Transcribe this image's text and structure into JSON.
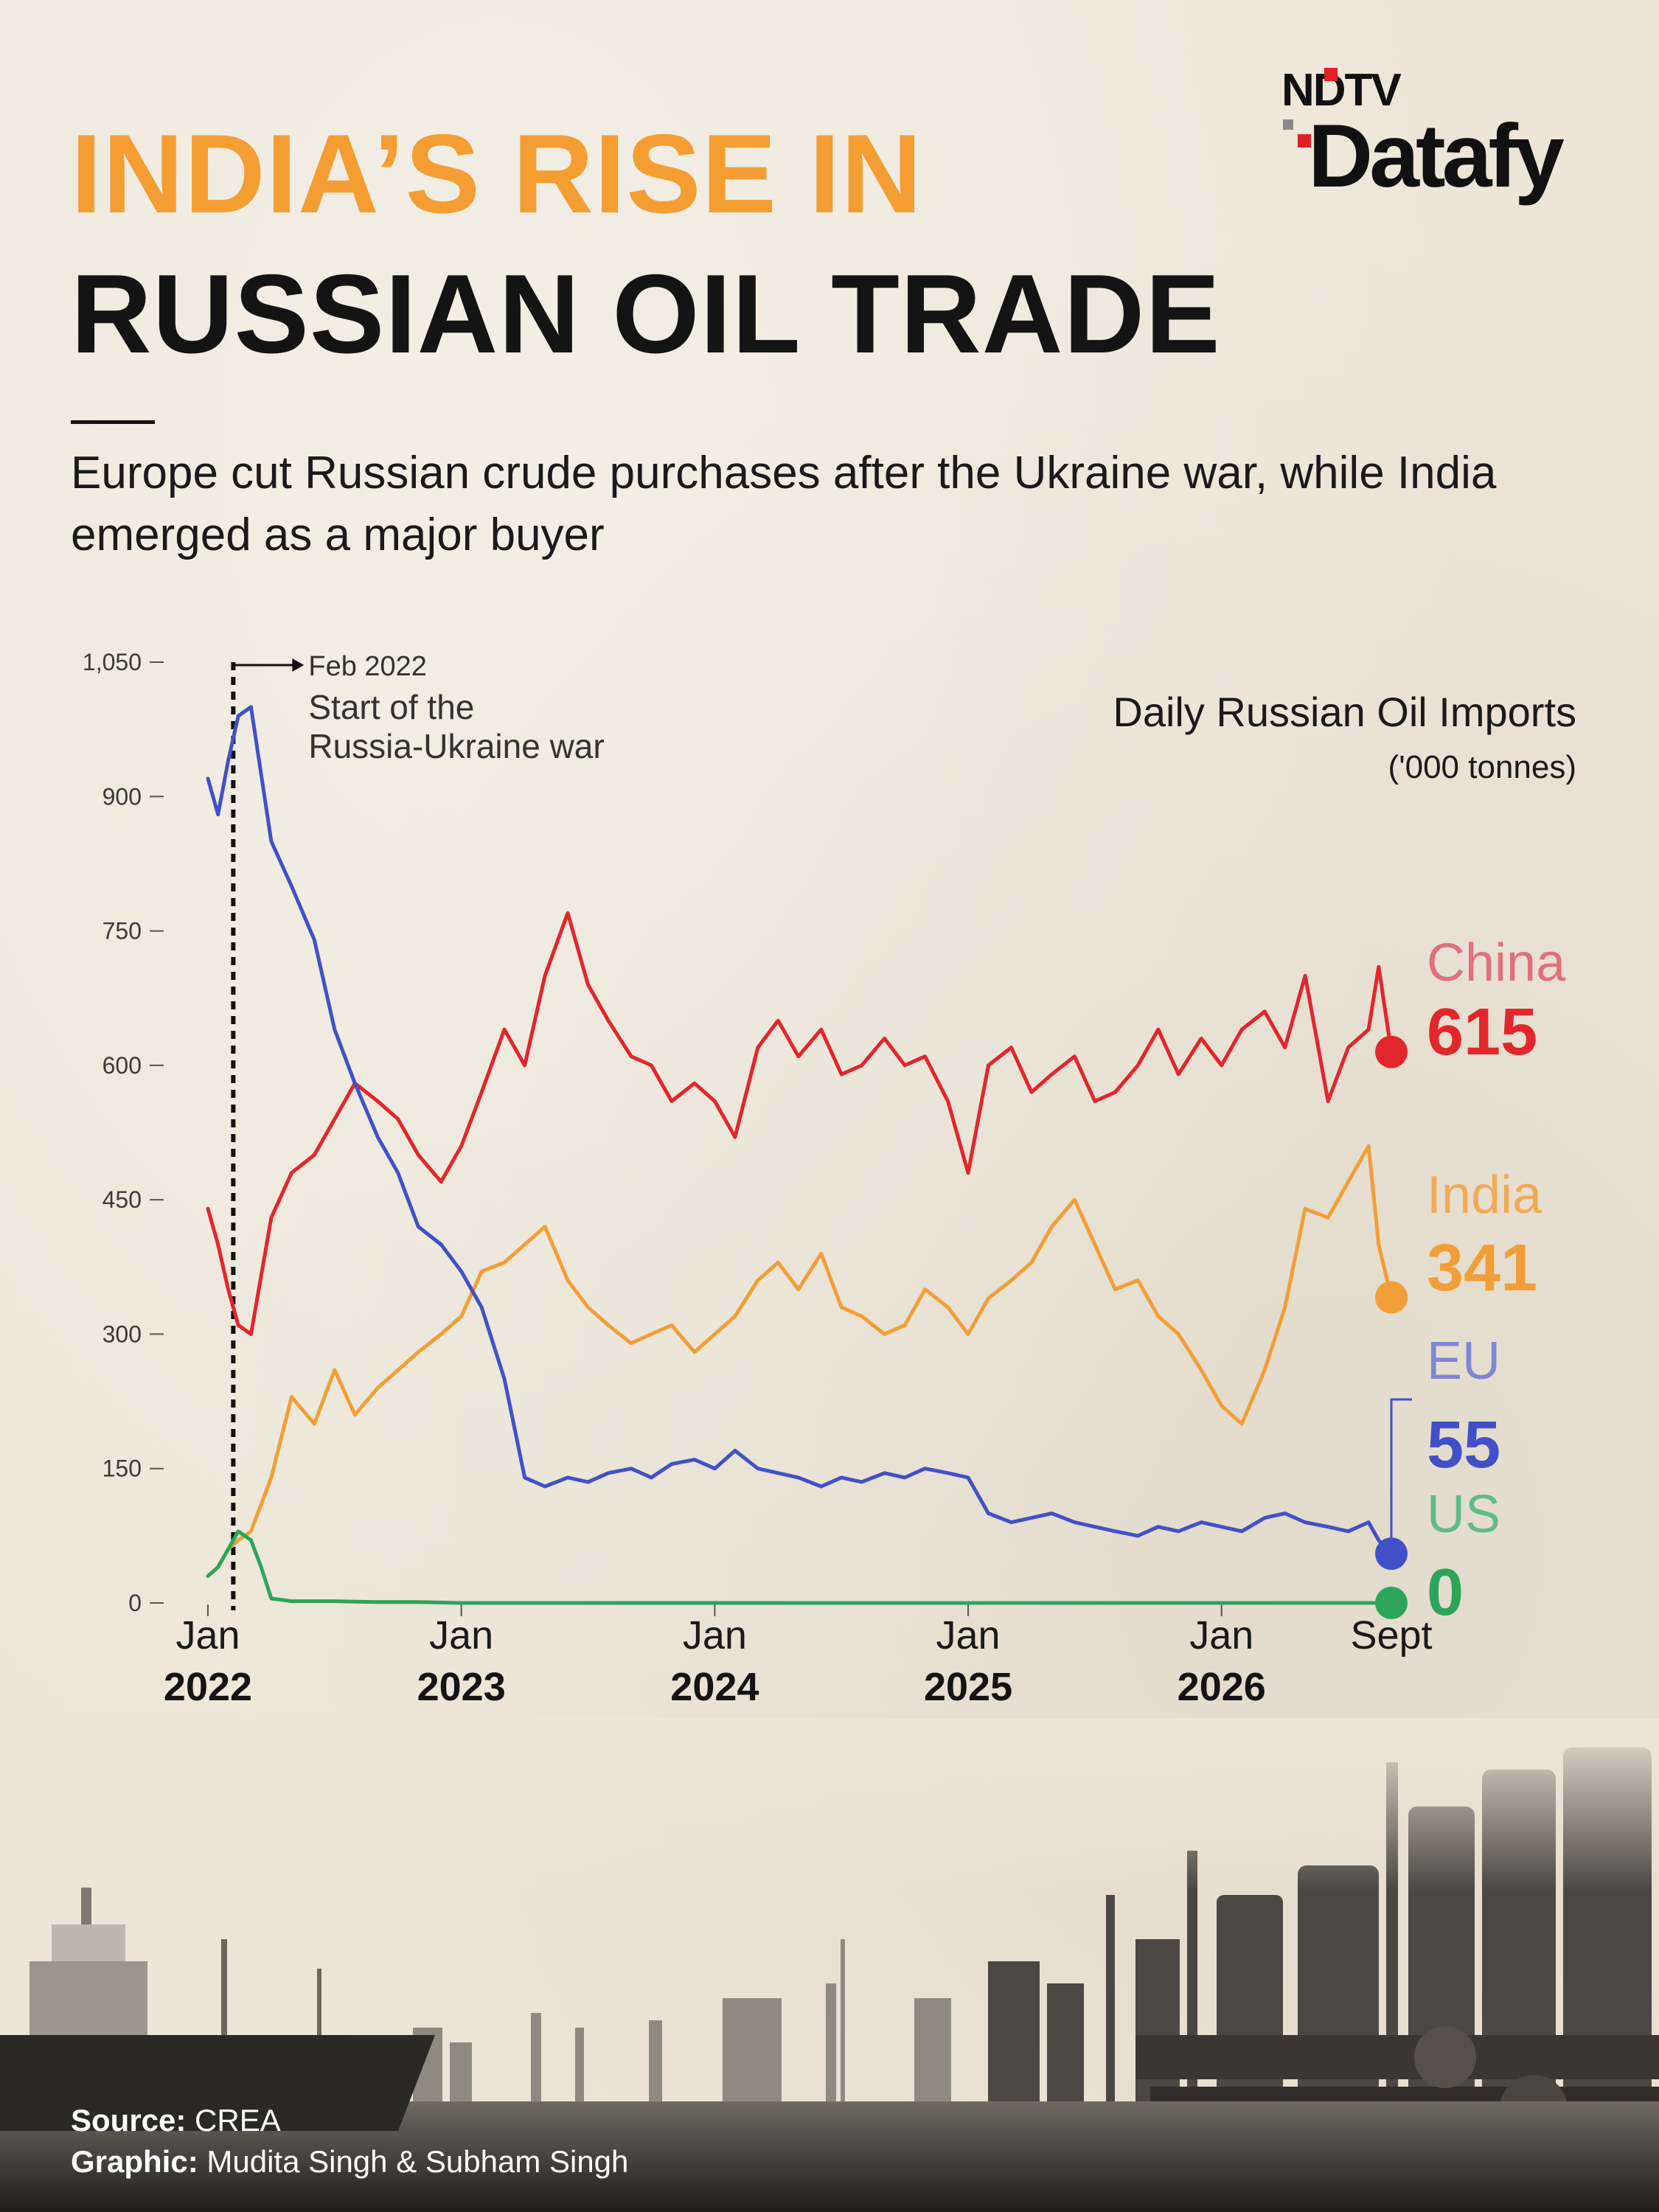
{
  "brand": {
    "line1": "NDTV",
    "line2": "Datafy"
  },
  "title": {
    "line1": "INDIA’S RISE IN",
    "line2": "RUSSIAN OIL TRADE"
  },
  "subtitle": "Europe cut Russian crude purchases after the Ukraine war, while India emerged as a major buyer",
  "footer": {
    "source_label": "Source:",
    "source_value": "CREA",
    "graphic_label": "Graphic:",
    "graphic_value": "Mudita Singh & Subham Singh"
  },
  "chart_data": {
    "type": "line",
    "title": "Daily Russian Oil Imports",
    "ylabel": "('000 tonnes)",
    "ylim": [
      0,
      1050
    ],
    "yticks": [
      "0",
      "150",
      "300",
      "450",
      "600",
      "750",
      "900",
      "1,050"
    ],
    "ytick_values": [
      0,
      150,
      300,
      450,
      600,
      750,
      900,
      1050
    ],
    "xlim": [
      2022.0,
      2026.67
    ],
    "xticks": [
      {
        "value": 2022.0,
        "month": "Jan",
        "year": "2022"
      },
      {
        "value": 2023.0,
        "month": "Jan",
        "year": "2023"
      },
      {
        "value": 2024.0,
        "month": "Jan",
        "year": "2024"
      },
      {
        "value": 2025.0,
        "month": "Jan",
        "year": "2025"
      },
      {
        "value": 2026.0,
        "month": "Jan",
        "year": "2026"
      },
      {
        "value": 2026.67,
        "month": "Sept",
        "year": ""
      }
    ],
    "annotation": {
      "x": 2022.1,
      "date": "Feb 2022",
      "text_line1": "Start of the",
      "text_line2": "Russia-Ukraine war"
    },
    "series": [
      {
        "name": "China",
        "color": "#e3262c",
        "label_color": "#e0707a",
        "last_value": "615",
        "x": [
          2022.0,
          2022.04,
          2022.08,
          2022.12,
          2022.17,
          2022.25,
          2022.33,
          2022.42,
          2022.5,
          2022.58,
          2022.67,
          2022.75,
          2022.83,
          2022.92,
          2023.0,
          2023.08,
          2023.17,
          2023.25,
          2023.33,
          2023.42,
          2023.5,
          2023.58,
          2023.67,
          2023.75,
          2023.83,
          2023.92,
          2024.0,
          2024.08,
          2024.17,
          2024.25,
          2024.33,
          2024.42,
          2024.5,
          2024.58,
          2024.67,
          2024.75,
          2024.83,
          2024.92,
          2025.0,
          2025.08,
          2025.17,
          2025.25,
          2025.33,
          2025.42,
          2025.5,
          2025.58,
          2025.67,
          2025.75,
          2025.83,
          2025.92,
          2026.0,
          2026.08,
          2026.17,
          2026.25,
          2026.33,
          2026.42,
          2026.5,
          2026.58,
          2026.62,
          2026.67
        ],
        "y": [
          440,
          400,
          350,
          310,
          300,
          430,
          480,
          500,
          540,
          580,
          560,
          540,
          500,
          470,
          510,
          570,
          640,
          600,
          700,
          770,
          690,
          650,
          610,
          600,
          560,
          580,
          560,
          520,
          620,
          650,
          610,
          640,
          590,
          600,
          630,
          600,
          610,
          560,
          480,
          600,
          620,
          570,
          590,
          610,
          560,
          570,
          600,
          640,
          590,
          630,
          600,
          640,
          660,
          620,
          700,
          560,
          620,
          640,
          710,
          615
        ]
      },
      {
        "name": "India",
        "color": "#f29e38",
        "label_color": "#f2ab55",
        "last_value": "341",
        "x": [
          2022.0,
          2022.04,
          2022.08,
          2022.12,
          2022.17,
          2022.25,
          2022.33,
          2022.42,
          2022.5,
          2022.58,
          2022.67,
          2022.75,
          2022.83,
          2022.92,
          2023.0,
          2023.08,
          2023.17,
          2023.25,
          2023.33,
          2023.42,
          2023.5,
          2023.58,
          2023.67,
          2023.75,
          2023.83,
          2023.92,
          2024.0,
          2024.08,
          2024.17,
          2024.25,
          2024.33,
          2024.42,
          2024.5,
          2024.58,
          2024.67,
          2024.75,
          2024.83,
          2024.92,
          2025.0,
          2025.08,
          2025.17,
          2025.25,
          2025.33,
          2025.42,
          2025.5,
          2025.58,
          2025.67,
          2025.75,
          2025.83,
          2025.92,
          2026.0,
          2026.08,
          2026.17,
          2026.25,
          2026.33,
          2026.42,
          2026.5,
          2026.58,
          2026.62,
          2026.67
        ],
        "y": [
          30,
          40,
          60,
          70,
          80,
          140,
          230,
          200,
          260,
          210,
          240,
          260,
          280,
          300,
          320,
          370,
          380,
          400,
          420,
          360,
          330,
          310,
          290,
          300,
          310,
          280,
          300,
          320,
          360,
          380,
          350,
          390,
          330,
          320,
          300,
          310,
          350,
          330,
          300,
          340,
          360,
          380,
          420,
          450,
          400,
          350,
          360,
          320,
          300,
          260,
          220,
          200,
          260,
          330,
          440,
          430,
          470,
          510,
          400,
          341
        ]
      },
      {
        "name": "EU",
        "color": "#4250c8",
        "label_color": "#7f86d4",
        "last_value": "55",
        "x": [
          2022.0,
          2022.04,
          2022.08,
          2022.12,
          2022.17,
          2022.25,
          2022.33,
          2022.42,
          2022.5,
          2022.58,
          2022.67,
          2022.75,
          2022.83,
          2022.92,
          2023.0,
          2023.08,
          2023.17,
          2023.25,
          2023.33,
          2023.42,
          2023.5,
          2023.58,
          2023.67,
          2023.75,
          2023.83,
          2023.92,
          2024.0,
          2024.08,
          2024.17,
          2024.25,
          2024.33,
          2024.42,
          2024.5,
          2024.58,
          2024.67,
          2024.75,
          2024.83,
          2024.92,
          2025.0,
          2025.08,
          2025.17,
          2025.25,
          2025.33,
          2025.42,
          2025.5,
          2025.58,
          2025.67,
          2025.75,
          2025.83,
          2025.92,
          2026.0,
          2026.08,
          2026.17,
          2026.25,
          2026.33,
          2026.42,
          2026.5,
          2026.58,
          2026.62,
          2026.67
        ],
        "y": [
          920,
          880,
          940,
          990,
          1000,
          850,
          800,
          740,
          640,
          580,
          520,
          480,
          420,
          400,
          370,
          330,
          250,
          140,
          130,
          140,
          135,
          145,
          150,
          140,
          155,
          160,
          150,
          170,
          150,
          145,
          140,
          130,
          140,
          135,
          145,
          140,
          150,
          145,
          140,
          100,
          90,
          95,
          100,
          90,
          85,
          80,
          75,
          85,
          80,
          90,
          85,
          80,
          95,
          100,
          90,
          85,
          80,
          90,
          70,
          55
        ]
      },
      {
        "name": "US",
        "color": "#2ca55a",
        "label_color": "#5fbd84",
        "last_value": "0",
        "x": [
          2022.0,
          2022.04,
          2022.08,
          2022.12,
          2022.17,
          2022.21,
          2022.25,
          2022.33,
          2022.5,
          2022.67,
          2022.83,
          2023.0,
          2023.5,
          2024.0,
          2025.0,
          2026.0,
          2026.67
        ],
        "y": [
          30,
          40,
          60,
          80,
          70,
          40,
          5,
          2,
          2,
          1,
          1,
          0,
          0,
          0,
          0,
          0,
          0
        ]
      }
    ]
  }
}
